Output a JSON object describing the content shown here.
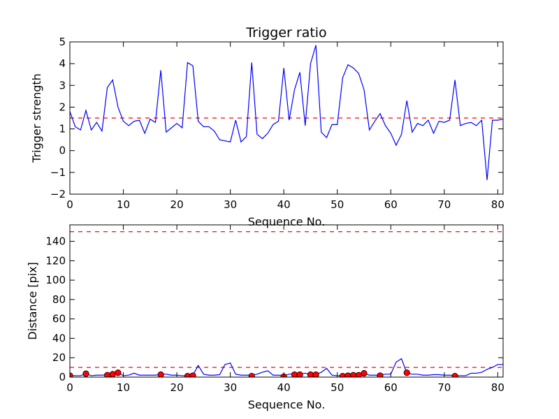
{
  "chart_data": [
    {
      "type": "line",
      "title": "Trigger ratio",
      "xlabel": "Sequence No.",
      "ylabel": "Trigger strength",
      "xlim": [
        0,
        81
      ],
      "ylim": [
        -2,
        5
      ],
      "xticks": [
        0,
        10,
        20,
        30,
        40,
        50,
        60,
        70,
        80
      ],
      "yticks": [
        -2,
        -1,
        0,
        1,
        2,
        3,
        4,
        5
      ],
      "grid": false,
      "colors": {
        "series": "#0000ff",
        "threshold": "#ff0000"
      },
      "threshold": 1.5,
      "series": [
        {
          "x": [
            0,
            1,
            2,
            3,
            4,
            5,
            6,
            7,
            8,
            9,
            10,
            11,
            12,
            13,
            14,
            15,
            16,
            17,
            18,
            19,
            20,
            21,
            22,
            23,
            24,
            25,
            26,
            27,
            28,
            29,
            30,
            31,
            32,
            33,
            34,
            35,
            36,
            37,
            38,
            39,
            40,
            41,
            42,
            43,
            44,
            45,
            46,
            47,
            48,
            49,
            50,
            51,
            52,
            53,
            54,
            55,
            56,
            57,
            58,
            59,
            60,
            61,
            62,
            63,
            64,
            65,
            66,
            67,
            68,
            69,
            70,
            71,
            72,
            73,
            74,
            75,
            76,
            77,
            78,
            79,
            80,
            81
          ],
          "y": [
            1.8,
            1.1,
            0.95,
            1.85,
            0.95,
            1.3,
            0.9,
            2.9,
            3.25,
            2.0,
            1.35,
            1.15,
            1.35,
            1.4,
            0.8,
            1.45,
            1.3,
            3.7,
            0.85,
            1.05,
            1.25,
            1.05,
            4.05,
            3.9,
            1.35,
            1.1,
            1.1,
            0.9,
            0.5,
            0.45,
            0.4,
            1.4,
            0.4,
            0.65,
            4.05,
            0.75,
            0.55,
            0.8,
            1.2,
            1.35,
            3.8,
            1.4,
            2.8,
            3.6,
            1.15,
            4.0,
            4.85,
            0.85,
            0.6,
            1.2,
            1.2,
            3.35,
            3.95,
            3.8,
            3.55,
            2.8,
            0.95,
            1.35,
            1.7,
            1.15,
            0.8,
            0.25,
            0.75,
            2.3,
            0.85,
            1.25,
            1.15,
            1.4,
            0.8,
            1.35,
            1.3,
            1.4,
            3.25,
            1.15,
            1.25,
            1.3,
            1.15,
            1.4,
            -1.35,
            1.4,
            1.4,
            1.45
          ]
        }
      ]
    },
    {
      "type": "line",
      "title": "",
      "xlabel": "Sequence No.",
      "ylabel": "Distance [pix]",
      "xlim": [
        0,
        81
      ],
      "ylim": [
        0,
        157
      ],
      "xticks": [
        0,
        10,
        20,
        30,
        40,
        50,
        60,
        70,
        80
      ],
      "yticks": [
        0,
        20,
        40,
        60,
        80,
        100,
        120,
        140
      ],
      "grid": false,
      "colors": {
        "series": "#0000ff",
        "threshold": "#ff0000",
        "markers": "#ff0000"
      },
      "thresholds": [
        10,
        150
      ],
      "series": [
        {
          "x": [
            0,
            1,
            2,
            3,
            4,
            5,
            6,
            7,
            8,
            9,
            10,
            11,
            12,
            13,
            14,
            15,
            16,
            17,
            18,
            19,
            20,
            21,
            22,
            23,
            24,
            25,
            26,
            27,
            28,
            29,
            30,
            31,
            32,
            33,
            34,
            35,
            36,
            37,
            38,
            39,
            40,
            41,
            42,
            43,
            44,
            45,
            46,
            47,
            48,
            49,
            50,
            51,
            52,
            53,
            54,
            55,
            56,
            57,
            58,
            59,
            60,
            61,
            62,
            63,
            64,
            65,
            66,
            67,
            68,
            69,
            70,
            71,
            72,
            73,
            74,
            75,
            76,
            77,
            78,
            79,
            80,
            81
          ],
          "y": [
            2,
            1.5,
            1.5,
            3.5,
            1.5,
            2,
            2,
            2.5,
            3.5,
            4.5,
            1.5,
            2,
            4,
            2,
            2,
            2,
            2,
            3,
            3,
            2,
            2,
            1.5,
            1.5,
            2,
            12,
            3,
            2,
            2,
            2.5,
            13,
            14.5,
            3,
            2,
            2,
            2,
            3,
            5,
            6.5,
            2,
            2,
            1.5,
            3,
            3.5,
            3,
            4,
            2.5,
            2.5,
            5,
            9,
            2,
            1.5,
            1.5,
            1.5,
            2,
            3,
            4,
            2,
            2,
            2,
            3,
            3,
            15.5,
            19,
            4,
            3,
            3,
            2,
            2,
            2.5,
            2.5,
            2,
            2,
            1.5,
            1.5,
            1.5,
            4,
            4,
            5,
            8,
            10,
            13,
            13
          ]
        }
      ],
      "markers": {
        "x": [
          0,
          3,
          7,
          8,
          9,
          17,
          22,
          23,
          34,
          40,
          42,
          43,
          45,
          46,
          51,
          52,
          53,
          54,
          55,
          58,
          63,
          72
        ],
        "y": [
          1.5,
          3.5,
          2,
          3,
          4.5,
          2.5,
          1,
          1.5,
          1,
          0.5,
          2.5,
          2.5,
          2.5,
          2.5,
          1,
          1.5,
          2,
          2,
          4,
          1.5,
          4.5,
          1
        ]
      }
    }
  ]
}
